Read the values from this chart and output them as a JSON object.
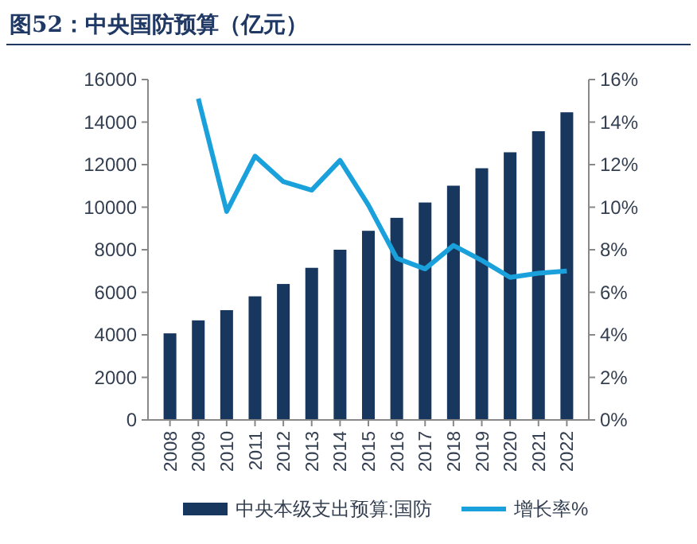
{
  "chart_data": {
    "type": "bar",
    "title": "图52：中央国防预算（亿元）",
    "categories": [
      "2008",
      "2009",
      "2010",
      "2011",
      "2012",
      "2013",
      "2014",
      "2015",
      "2016",
      "2017",
      "2018",
      "2019",
      "2020",
      "2021",
      "2022"
    ],
    "series": [
      {
        "name": "中央本级支出预算:国防",
        "color": "#17375e",
        "values": [
          4070,
          4680,
          5160,
          5810,
          6390,
          7150,
          8000,
          8890,
          9500,
          10220,
          11010,
          11830,
          12580,
          13570,
          14460
        ]
      },
      {
        "name": "增长率%",
        "type": "line",
        "axis": "y2",
        "color": "#1aa1db",
        "values": [
          null,
          15.1,
          9.8,
          12.4,
          11.2,
          10.8,
          12.2,
          10.1,
          7.6,
          7.1,
          8.2,
          7.5,
          6.7,
          6.9,
          7.0
        ]
      }
    ],
    "ylim": [
      0,
      16000
    ],
    "yticks": [
      0,
      2000,
      4000,
      6000,
      8000,
      10000,
      12000,
      14000,
      16000
    ],
    "y2lim": [
      0,
      16
    ],
    "y2ticks": [
      {
        "value": 0,
        "label": "0%"
      },
      {
        "value": 2,
        "label": "2%"
      },
      {
        "value": 4,
        "label": "4%"
      },
      {
        "value": 6,
        "label": "6%"
      },
      {
        "value": 8,
        "label": "8%"
      },
      {
        "value": 10,
        "label": "10%"
      },
      {
        "value": 12,
        "label": "12%"
      },
      {
        "value": 14,
        "label": "14%"
      },
      {
        "value": 16,
        "label": "16%"
      }
    ],
    "legend": "bottom",
    "grid": false
  }
}
